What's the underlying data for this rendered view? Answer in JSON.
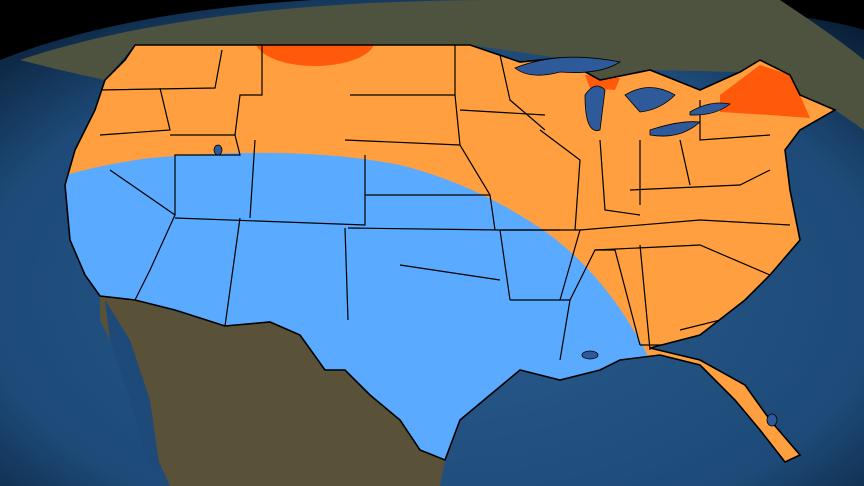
{
  "map": {
    "colors": {
      "ocean": "#1d4a78",
      "ocean_dark": "#0e2a48",
      "land": "#5a5238",
      "lakes": "#2f5a9a",
      "above_normal": "#ff9f3f",
      "much_above_normal": "#ff5a0a",
      "below_normal": "#5aaaff",
      "border": "#000000"
    },
    "regions": [
      {
        "name": "above",
        "color_key": "above_normal"
      },
      {
        "name": "much-above",
        "color_key": "much_above_normal"
      },
      {
        "name": "below",
        "color_key": "below_normal"
      }
    ]
  }
}
